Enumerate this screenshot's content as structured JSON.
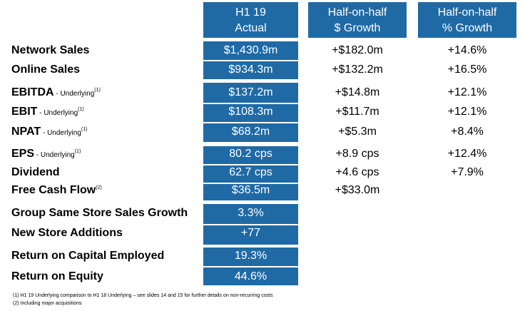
{
  "headers": {
    "col1": [
      "H1 19",
      "Actual"
    ],
    "col2": [
      "Half-on-half",
      "$ Growth"
    ],
    "col3": [
      "Half-on-half",
      "% Growth"
    ]
  },
  "rows": [
    {
      "label": "Network Sales",
      "suffix": "",
      "note": "",
      "actual": "$1,430.9m",
      "dollar": "+$182.0m",
      "pct": "+14.6%"
    },
    {
      "label": "Online Sales",
      "suffix": "",
      "note": "",
      "actual": "$934.3m",
      "dollar": "+$132.2m",
      "pct": "+16.5%"
    },
    {
      "label": "EBITDA",
      "suffix": " - Underlying",
      "note": "(1)",
      "actual": "$137.2m",
      "dollar": "+$14.8m",
      "pct": "+12.1%"
    },
    {
      "label": "EBIT",
      "suffix": " - Underlying",
      "note": "(1)",
      "actual": "$108.3m",
      "dollar": "+$11.7m",
      "pct": "+12.1%"
    },
    {
      "label": "NPAT",
      "suffix": " - Underlying",
      "note": "(1)",
      "actual": "$68.2m",
      "dollar": "+$5.3m",
      "pct": "+8.4%"
    },
    {
      "label": "EPS",
      "suffix": " - Underlying",
      "note": "(1)",
      "actual": "80.2 cps",
      "dollar": "+8.9 cps",
      "pct": "+12.4%"
    },
    {
      "label": "Dividend",
      "suffix": "",
      "note": "",
      "actual": "62.7 cps",
      "dollar": "+4.6 cps",
      "pct": "+7.9%"
    },
    {
      "label": "Free Cash Flow",
      "suffix": "",
      "note": "(2)",
      "actual": "$36.5m",
      "dollar": "+$33.0m",
      "pct": ""
    },
    {
      "label": "Group Same Store Sales Growth",
      "suffix": "",
      "note": "",
      "actual": "3.3%",
      "dollar": "",
      "pct": ""
    },
    {
      "label": "New Store Additions",
      "suffix": "",
      "note": "",
      "actual": "+77",
      "dollar": "",
      "pct": ""
    },
    {
      "label": "Return on Capital Employed",
      "suffix": "",
      "note": "",
      "actual": "19.3%",
      "dollar": "",
      "pct": ""
    },
    {
      "label": "Return on Equity",
      "suffix": "",
      "note": "",
      "actual": "44.6%",
      "dollar": "",
      "pct": ""
    }
  ],
  "footnotes": [
    "(1)  H1 19 Underlying comparison to H1 18 Underlying – see slides 14 and 15 for further details on non-recurring costs",
    "(2)  Including major acquisitions"
  ],
  "colors": {
    "accent": "#1f6aa5"
  }
}
